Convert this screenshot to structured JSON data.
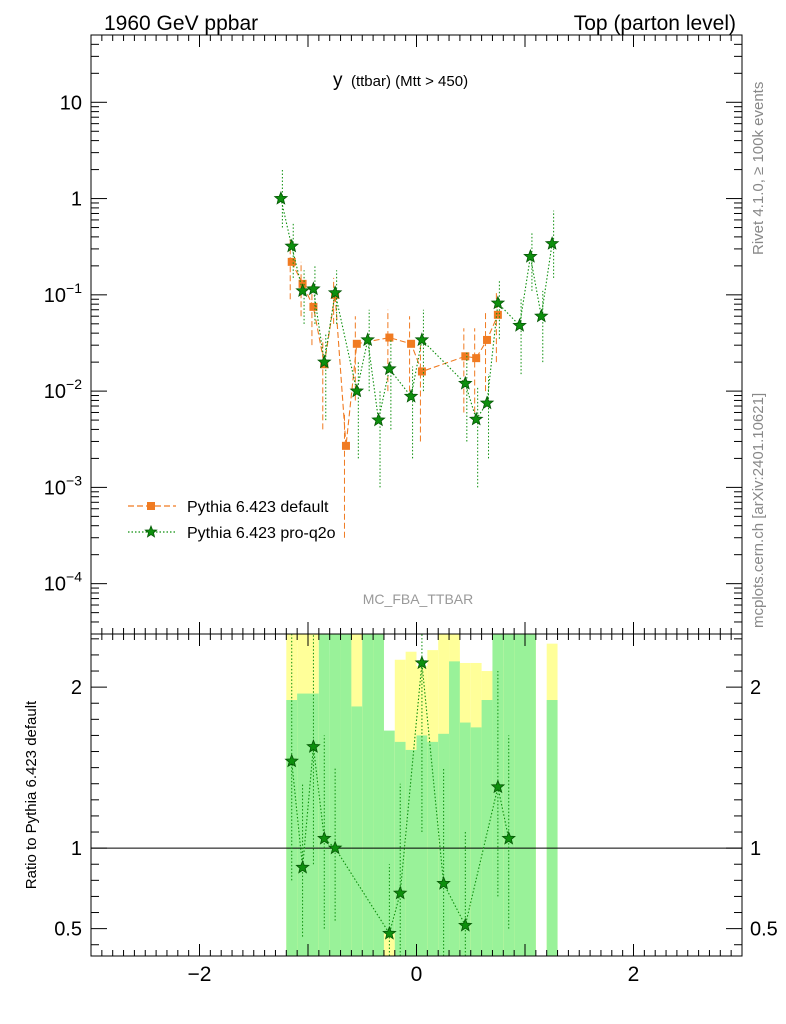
{
  "header": {
    "left": "1960 GeV ppbar",
    "right": "Top (parton level)"
  },
  "side_labels": {
    "rivet": "Rivet 4.1.0, ≥ 100k events",
    "mcplots": "mcplots.cern.ch [arXiv:2401.10621]"
  },
  "chart_data": {
    "type": "scatter",
    "title": "y (ttbar) (Mtt > 450)",
    "title_main": "y",
    "title_sub": "(ttbar) (Mtt > 450)",
    "watermark": "MC_FBA_TTBAR",
    "xlabel": "",
    "ylabel": "",
    "xlim": [
      -3,
      3
    ],
    "ylim": [
      3e-05,
      50
    ],
    "yscale": "log",
    "y_ticks": [
      {
        "value": 0.0001,
        "base": "10",
        "exp": "−4"
      },
      {
        "value": 0.001,
        "base": "10",
        "exp": "−3"
      },
      {
        "value": 0.01,
        "base": "10",
        "exp": "−2"
      },
      {
        "value": 0.1,
        "base": "10",
        "exp": "−1"
      },
      {
        "value": 1,
        "base": "1",
        "exp": ""
      },
      {
        "value": 10,
        "base": "10",
        "exp": ""
      }
    ],
    "x_ticks": [
      {
        "value": -2,
        "label": "−2"
      },
      {
        "value": 0,
        "label": "0"
      },
      {
        "value": 2,
        "label": "2"
      }
    ],
    "legend": [
      {
        "label": "Pythia 6.423 default",
        "color": "#f07b22",
        "marker": "square",
        "dash": "dashed"
      },
      {
        "label": "Pythia 6.423 pro-q2o",
        "color": "#0d8f0d",
        "marker": "star",
        "dash": "dotted"
      }
    ],
    "series": [
      {
        "name": "Pythia 6.423 default",
        "color": "#f07b22",
        "points": [
          {
            "x": -1.15,
            "y": 0.22,
            "lo": 0.09,
            "hi": 0.4
          },
          {
            "x": -1.05,
            "y": 0.13,
            "lo": 0.06,
            "hi": 0.22
          },
          {
            "x": -0.95,
            "y": 0.075,
            "lo": 0.03,
            "hi": 0.13
          },
          {
            "x": -0.85,
            "y": 0.019,
            "lo": 0.004,
            "hi": 0.035
          },
          {
            "x": -0.75,
            "y": 0.1,
            "lo": 0.05,
            "hi": 0.15
          },
          {
            "x": -0.65,
            "y": 0.0027,
            "lo": 0.0003,
            "hi": 0.006
          },
          {
            "x": -0.55,
            "y": 0.031,
            "lo": 0.008,
            "hi": 0.06
          },
          {
            "x": -0.25,
            "y": 0.036,
            "lo": 0.01,
            "hi": 0.07
          },
          {
            "x": -0.05,
            "y": 0.031,
            "lo": 0.008,
            "hi": 0.06
          },
          {
            "x": 0.05,
            "y": 0.016,
            "lo": 0.003,
            "hi": 0.03
          },
          {
            "x": 0.45,
            "y": 0.023,
            "lo": 0.006,
            "hi": 0.045
          },
          {
            "x": 0.55,
            "y": 0.022,
            "lo": 0.006,
            "hi": 0.045
          },
          {
            "x": 0.65,
            "y": 0.034,
            "lo": 0.01,
            "hi": 0.065
          },
          {
            "x": 0.75,
            "y": 0.062,
            "lo": 0.02,
            "hi": 0.11
          }
        ]
      },
      {
        "name": "Pythia 6.423 pro-q2o",
        "color": "#0d8f0d",
        "points": [
          {
            "x": -1.25,
            "y": 1.0,
            "lo": 0.5,
            "hi": 2.0
          },
          {
            "x": -1.15,
            "y": 0.32,
            "lo": 0.15,
            "hi": 0.55
          },
          {
            "x": -1.05,
            "y": 0.11,
            "lo": 0.05,
            "hi": 0.18
          },
          {
            "x": -0.95,
            "y": 0.115,
            "lo": 0.05,
            "hi": 0.2
          },
          {
            "x": -0.85,
            "y": 0.02,
            "lo": 0.005,
            "hi": 0.04
          },
          {
            "x": -0.75,
            "y": 0.105,
            "lo": 0.05,
            "hi": 0.18
          },
          {
            "x": -0.55,
            "y": 0.01,
            "lo": 0.002,
            "hi": 0.02
          },
          {
            "x": -0.45,
            "y": 0.034,
            "lo": 0.01,
            "hi": 0.07
          },
          {
            "x": -0.35,
            "y": 0.005,
            "lo": 0.001,
            "hi": 0.01
          },
          {
            "x": -0.25,
            "y": 0.017,
            "lo": 0.004,
            "hi": 0.035
          },
          {
            "x": -0.05,
            "y": 0.0088,
            "lo": 0.002,
            "hi": 0.018
          },
          {
            "x": 0.05,
            "y": 0.034,
            "lo": 0.01,
            "hi": 0.07
          },
          {
            "x": 0.45,
            "y": 0.012,
            "lo": 0.003,
            "hi": 0.025
          },
          {
            "x": 0.55,
            "y": 0.0051,
            "lo": 0.001,
            "hi": 0.011
          },
          {
            "x": 0.65,
            "y": 0.0075,
            "lo": 0.002,
            "hi": 0.015
          },
          {
            "x": 0.75,
            "y": 0.082,
            "lo": 0.035,
            "hi": 0.14
          },
          {
            "x": 0.95,
            "y": 0.048,
            "lo": 0.015,
            "hi": 0.09
          },
          {
            "x": 1.05,
            "y": 0.25,
            "lo": 0.11,
            "hi": 0.45
          },
          {
            "x": 1.15,
            "y": 0.06,
            "lo": 0.02,
            "hi": 0.11
          },
          {
            "x": 1.25,
            "y": 0.34,
            "lo": 0.15,
            "hi": 0.75
          }
        ]
      }
    ],
    "ratio": {
      "ylabel": "Ratio to Pythia 6.423 default",
      "ylim": [
        0.33,
        2.33
      ],
      "y_ticks": [
        {
          "value": 0.5,
          "label": "0.5"
        },
        {
          "value": 1,
          "label": "1"
        },
        {
          "value": 2,
          "label": "2"
        }
      ],
      "band_bins": [
        {
          "x0": -1.2,
          "x1": -1.1,
          "yellow": [
            0.33,
            2.33
          ],
          "green": [
            0.33,
            1.92
          ]
        },
        {
          "x0": -1.1,
          "x1": -1.0,
          "yellow": [
            0.33,
            2.33
          ],
          "green": [
            0.33,
            1.96
          ]
        },
        {
          "x0": -1.0,
          "x1": -0.9,
          "yellow": [
            0.33,
            2.33
          ],
          "green": [
            0.33,
            1.96
          ]
        },
        {
          "x0": -0.9,
          "x1": -0.8,
          "yellow": [
            0.33,
            2.2
          ],
          "green": [
            0.33,
            2.33
          ]
        },
        {
          "x0": -0.8,
          "x1": -0.7,
          "yellow": [
            0.33,
            0.68
          ],
          "green": [
            0.33,
            2.33
          ]
        },
        {
          "x0": -0.7,
          "x1": -0.6,
          "yellow": [
            0.33,
            2.33
          ],
          "green": [
            0.33,
            2.33
          ]
        },
        {
          "x0": -0.6,
          "x1": -0.5,
          "yellow": [
            0.33,
            2.33
          ],
          "green": [
            0.33,
            1.88
          ]
        },
        {
          "x0": -0.5,
          "x1": -0.4,
          "yellow": [
            0.33,
            2.33
          ],
          "green": [
            0.33,
            2.33
          ]
        },
        {
          "x0": -0.4,
          "x1": -0.3,
          "yellow": [
            0.33,
            2.33
          ],
          "green": [
            0.33,
            2.33
          ]
        },
        {
          "x0": -0.3,
          "x1": -0.2,
          "yellow": [
            0.33,
            0.47
          ],
          "green": [
            0.47,
            1.73
          ]
        },
        {
          "x0": -0.2,
          "x1": -0.1,
          "yellow": [
            0.33,
            2.17
          ],
          "green": [
            0.33,
            1.66
          ]
        },
        {
          "x0": -0.1,
          "x1": 0.0,
          "yellow": [
            0.33,
            2.22
          ],
          "green": [
            0.33,
            1.61
          ]
        },
        {
          "x0": 0.0,
          "x1": 0.1,
          "yellow": [
            0.33,
            2.13
          ],
          "green": [
            0.33,
            1.7
          ]
        },
        {
          "x0": 0.1,
          "x1": 0.2,
          "yellow": [
            0.33,
            2.23
          ],
          "green": [
            0.33,
            1.66
          ]
        },
        {
          "x0": 0.2,
          "x1": 0.3,
          "yellow": [
            0.33,
            2.33
          ],
          "green": [
            0.33,
            1.71
          ]
        },
        {
          "x0": 0.3,
          "x1": 0.4,
          "yellow": [
            0.33,
            2.33
          ],
          "green": [
            0.33,
            2.16
          ]
        },
        {
          "x0": 0.4,
          "x1": 0.5,
          "yellow": [
            0.33,
            2.15
          ],
          "green": [
            0.33,
            1.78
          ]
        },
        {
          "x0": 0.5,
          "x1": 0.6,
          "yellow": [
            0.33,
            2.15
          ],
          "green": [
            0.33,
            1.75
          ]
        },
        {
          "x0": 0.6,
          "x1": 0.7,
          "yellow": [
            0.33,
            2.1
          ],
          "green": [
            0.33,
            1.92
          ]
        },
        {
          "x0": 0.7,
          "x1": 0.8,
          "yellow": [
            0.33,
            2.13
          ],
          "green": [
            0.33,
            2.33
          ]
        },
        {
          "x0": 0.8,
          "x1": 0.9,
          "yellow": [
            0.33,
            2.33
          ],
          "green": [
            0.33,
            2.33
          ]
        },
        {
          "x0": 0.9,
          "x1": 1.0,
          "yellow": [
            0.33,
            2.33
          ],
          "green": [
            0.33,
            2.33
          ]
        },
        {
          "x0": 1.0,
          "x1": 1.1,
          "yellow": [
            0.33,
            2.33
          ],
          "green": [
            0.33,
            2.33
          ]
        },
        {
          "x0": 1.2,
          "x1": 1.3,
          "yellow": [
            0.33,
            2.27
          ],
          "green": [
            0.33,
            1.92
          ]
        }
      ],
      "points": [
        {
          "x": -1.15,
          "y": 1.54,
          "lo": 0.8,
          "hi": 2.33
        },
        {
          "x": -1.05,
          "y": 0.88,
          "lo": 0.45,
          "hi": 1.4
        },
        {
          "x": -0.95,
          "y": 1.63,
          "lo": 0.9,
          "hi": 2.33
        },
        {
          "x": -0.85,
          "y": 1.06,
          "lo": 0.5,
          "hi": 1.7
        },
        {
          "x": -0.75,
          "y": 1.0,
          "lo": 0.55,
          "hi": 1.5
        },
        {
          "x": -0.25,
          "y": 0.47,
          "lo": 0.33,
          "hi": 0.9
        },
        {
          "x": -0.15,
          "y": 0.72,
          "lo": 0.33,
          "hi": 1.4
        },
        {
          "x": 0.05,
          "y": 2.15,
          "lo": 1.1,
          "hi": 2.33
        },
        {
          "x": 0.25,
          "y": 0.78,
          "lo": 0.33,
          "hi": 1.5
        },
        {
          "x": 0.45,
          "y": 0.52,
          "lo": 0.33,
          "hi": 1.1
        },
        {
          "x": 0.75,
          "y": 1.38,
          "lo": 0.7,
          "hi": 2.1
        },
        {
          "x": 0.85,
          "y": 1.06,
          "lo": 0.5,
          "hi": 1.7
        }
      ]
    }
  }
}
